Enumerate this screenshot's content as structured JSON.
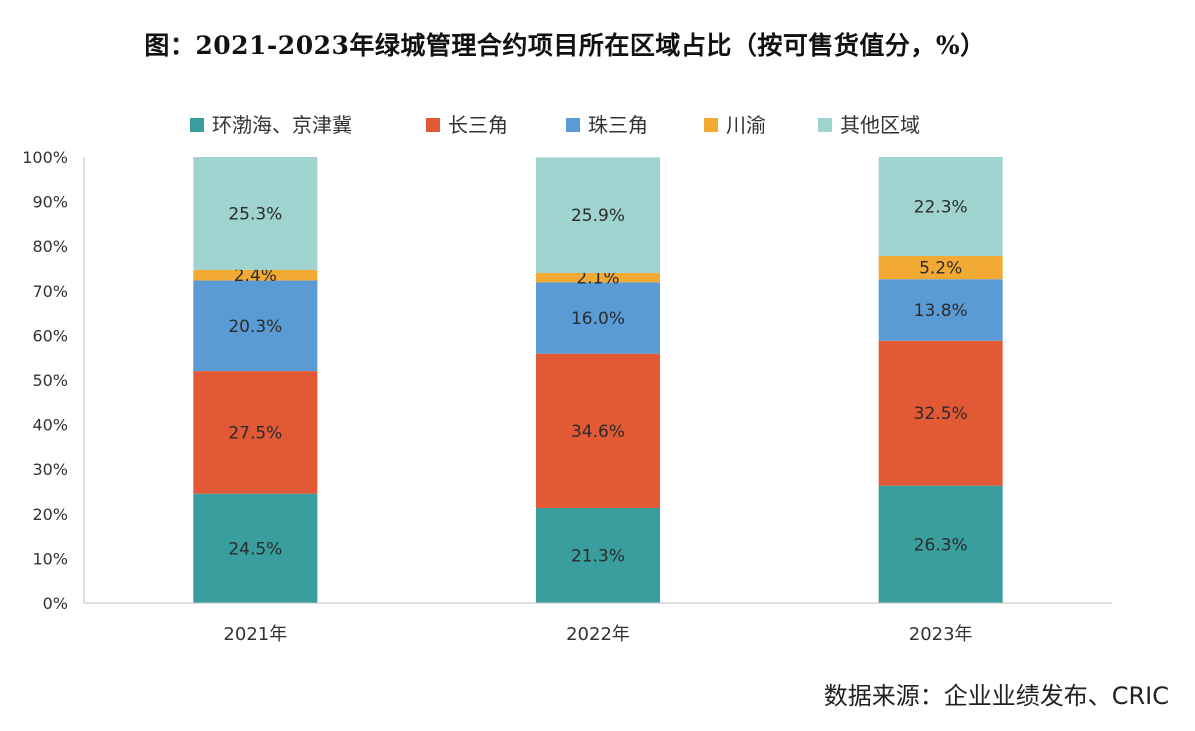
{
  "chart_data": {
    "type": "bar",
    "stacked": true,
    "title": "图：2021-2023年绿城管理合约项目所在区域占比（按可售货值分，%）",
    "categories": [
      "2021年",
      "2022年",
      "2023年"
    ],
    "series": [
      {
        "name": "环渤海、京津冀",
        "color": "#3a9e9e",
        "values": [
          24.5,
          21.3,
          26.3
        ],
        "labels": [
          "24.5%",
          "21.3%",
          "26.3%"
        ]
      },
      {
        "name": "长三角",
        "color": "#e25a35",
        "values": [
          27.5,
          34.6,
          32.5
        ],
        "labels": [
          "27.5%",
          "34.6%",
          "32.5%"
        ]
      },
      {
        "name": "珠三角",
        "color": "#5b9bd5",
        "values": [
          20.3,
          16.0,
          13.8
        ],
        "labels": [
          "20.3%",
          "16.0%",
          "13.8%"
        ]
      },
      {
        "name": "川渝",
        "color": "#f2aa34",
        "values": [
          2.4,
          2.1,
          5.2
        ],
        "labels": [
          "2.4%",
          "2.1%",
          "5.2%"
        ]
      },
      {
        "name": "其他区域",
        "color": "#9fd3d0",
        "values": [
          25.3,
          25.9,
          22.3
        ],
        "labels": [
          "25.3%",
          "25.9%",
          "22.3%"
        ]
      }
    ],
    "yticks": [
      "0%",
      "10%",
      "20%",
      "30%",
      "40%",
      "50%",
      "60%",
      "70%",
      "80%",
      "90%",
      "100%"
    ],
    "ylim": [
      0,
      100
    ],
    "legend_position": "top",
    "grid": false,
    "source": "数据来源：企业业绩发布、CRIC"
  }
}
